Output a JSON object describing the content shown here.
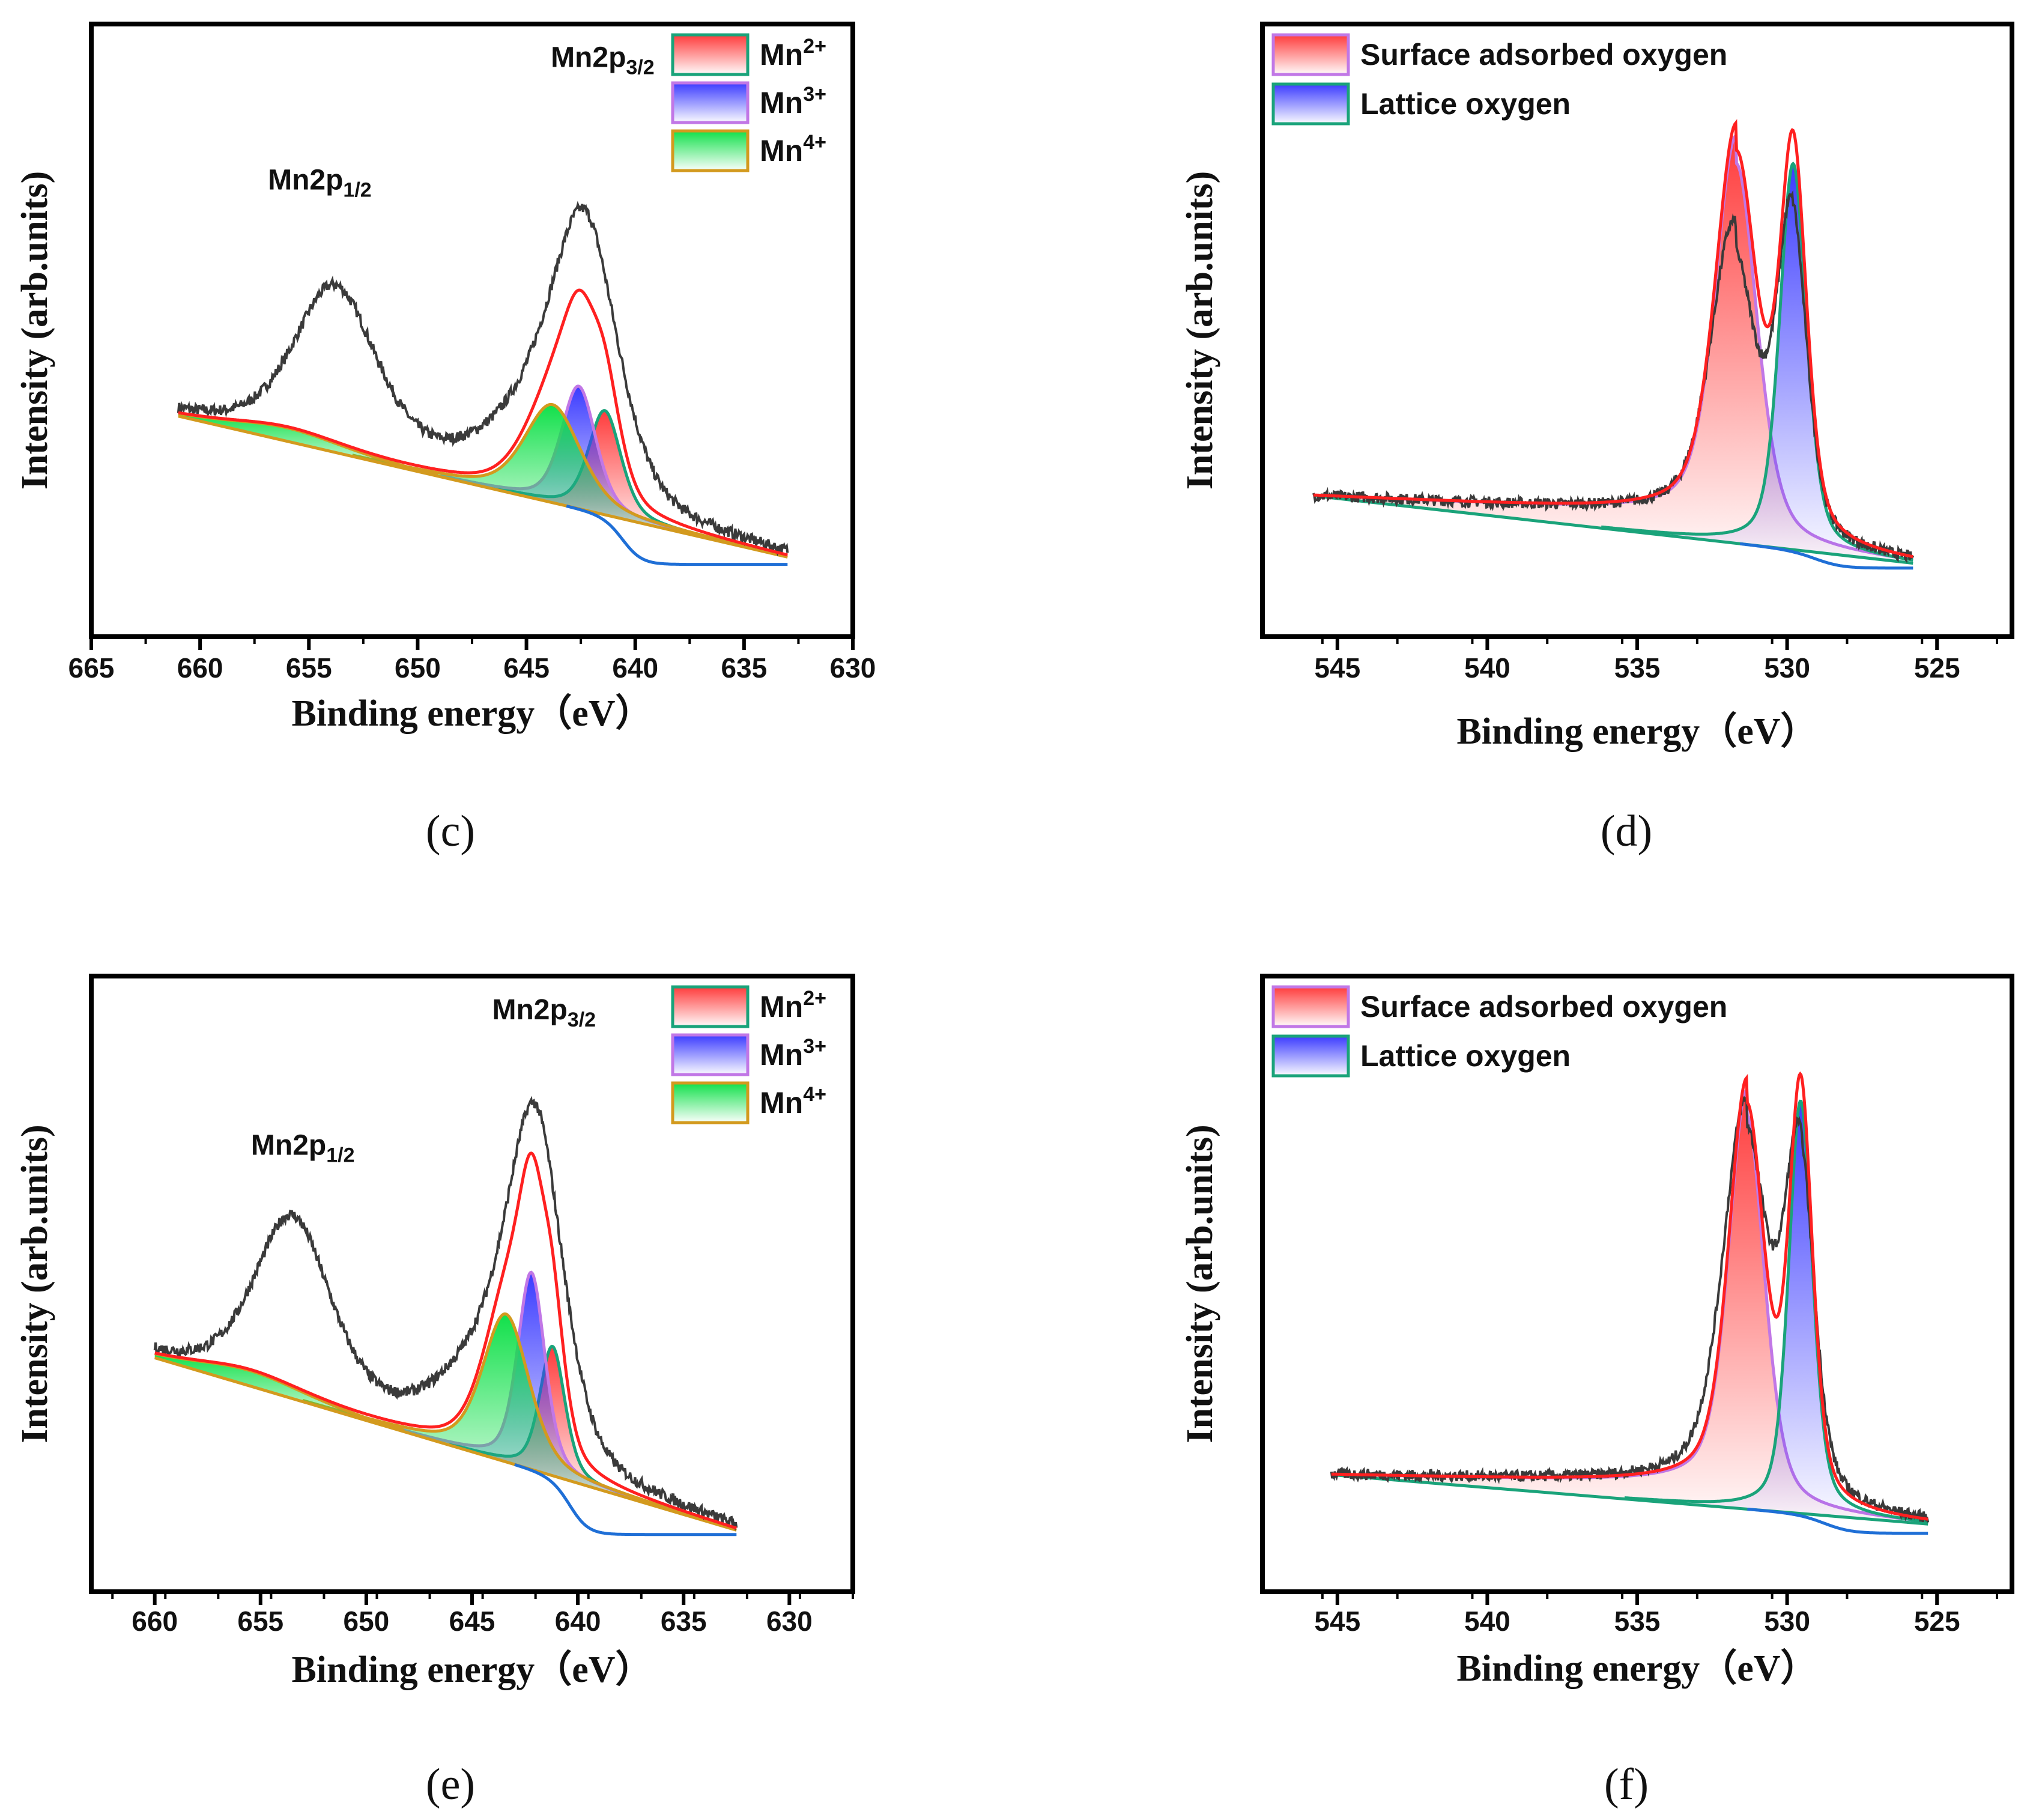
{
  "figure": {
    "panels": [
      "c",
      "d",
      "e",
      "f"
    ]
  },
  "chart_data": [
    {
      "id": "c",
      "type": "line",
      "panel_label": "(c)",
      "title": "",
      "xlabel": "Binding energy（eV）",
      "ylabel": "Intensity (arb.units)",
      "xlim": [
        665,
        630
      ],
      "ylim": [
        0,
        1
      ],
      "x_ticks": [
        665,
        660,
        655,
        650,
        645,
        640,
        635,
        630
      ],
      "y_ticks_shown": false,
      "peak_labels": [
        {
          "text": "Mn2p",
          "sub": "1/2",
          "x": 654.5,
          "y": 0.73
        },
        {
          "text": "Mn2p",
          "sub": "3/2",
          "x": 641.5,
          "y": 0.93
        }
      ],
      "legend": {
        "position": "top-right",
        "entries": [
          {
            "label": "Mn",
            "sup": "2+",
            "fill": "#ff3b3b",
            "edge": "#1aa37a"
          },
          {
            "label": "Mn",
            "sup": "3+",
            "fill": "#3b3bff",
            "edge": "#c177e6"
          },
          {
            "label": "Mn",
            "sup": "4+",
            "fill": "#11e04a",
            "edge": "#d39a1e"
          }
        ]
      },
      "data_range": [
        661,
        633
      ],
      "raw_peaks": [
        {
          "center": 653.8,
          "height": 0.265,
          "width": 1.9
        },
        {
          "center": 642.3,
          "height": 0.42,
          "width": 1.5
        },
        {
          "center": 644.6,
          "height": 0.11,
          "width": 2.3
        }
      ],
      "baseline": {
        "left": 0.36,
        "right": 0.13,
        "x0": 661,
        "x1": 633,
        "lower_end": 0.118
      },
      "components": [
        {
          "name": "Mn2+",
          "center": 641.4,
          "height": 0.17,
          "width": 0.75,
          "fill": "#ff3b3b",
          "edge": "#1aa37a"
        },
        {
          "name": "Mn3+",
          "center": 642.6,
          "height": 0.2,
          "width": 0.8,
          "fill": "#3b3bff",
          "edge": "#c177e6"
        },
        {
          "name": "Mn4+",
          "center": 643.8,
          "height": 0.16,
          "width": 1.3,
          "fill": "#11e04a",
          "edge": "#d39a1e"
        },
        {
          "name": "Mn4+ sat",
          "center": 656.0,
          "height": 0.022,
          "width": 2.6,
          "fill": "#11e04a",
          "edge": "#d39a1e"
        }
      ],
      "colors": {
        "raw": "#3a3a3a",
        "envelope": "#ff2020",
        "low_baseline": "#1f6fd6"
      }
    },
    {
      "id": "d",
      "type": "line",
      "panel_label": "(d)",
      "title": "",
      "xlabel": "Binding energy（eV）",
      "ylabel": "Intensity (arb.units)",
      "xlim": [
        547.5,
        522.5
      ],
      "ylim": [
        0,
        1
      ],
      "x_ticks": [
        545,
        540,
        535,
        530,
        525
      ],
      "y_ticks_shown": false,
      "legend": {
        "position": "top-left",
        "entries": [
          {
            "label": "Surface adsorbed oxygen",
            "fill": "#ff3b3b",
            "edge": "#c177e6"
          },
          {
            "label": "Lattice oxygen",
            "fill": "#3b3bff",
            "edge": "#1aa37a"
          }
        ]
      },
      "data_range": [
        545.8,
        525.8
      ],
      "raw_peaks": [
        {
          "center": 531.8,
          "height": 0.46,
          "width": 0.75
        },
        {
          "center": 529.85,
          "height": 0.53,
          "width": 0.5
        }
      ],
      "baseline": {
        "left": 0.23,
        "right": 0.12,
        "x0": 545.8,
        "x1": 525.8,
        "lower_end": 0.112
      },
      "components": [
        {
          "name": "Surface adsorbed oxygen",
          "center": 531.7,
          "height": 0.62,
          "width": 0.7,
          "fill": "#ff3b3b",
          "edge": "#c177e6",
          "tail": 0.045
        },
        {
          "name": "Lattice oxygen",
          "center": 529.8,
          "height": 0.63,
          "width": 0.45,
          "fill": "#3b3bff",
          "edge": "#1aa37a"
        }
      ],
      "colors": {
        "raw": "#3a3a3a",
        "envelope": "#ff2020",
        "low_baseline": "#1f6fd6"
      }
    },
    {
      "id": "e",
      "type": "line",
      "panel_label": "(e)",
      "title": "",
      "xlabel": "Binding energy（eV）",
      "ylabel": "Intensity (arb.units)",
      "xlim": [
        663,
        627
      ],
      "ylim": [
        0,
        1
      ],
      "x_ticks": [
        660,
        655,
        650,
        645,
        640,
        635,
        630
      ],
      "y_ticks_shown": false,
      "peak_labels": [
        {
          "text": "Mn2p",
          "sub": "1/2",
          "x": 653.0,
          "y": 0.71
        },
        {
          "text": "Mn2p",
          "sub": "3/2",
          "x": 641.6,
          "y": 0.93
        }
      ],
      "legend": {
        "position": "top-right",
        "entries": [
          {
            "label": "Mn",
            "sup": "2+",
            "fill": "#ff3b3b",
            "edge": "#1aa37a"
          },
          {
            "label": "Mn",
            "sup": "3+",
            "fill": "#3b3bff",
            "edge": "#c177e6"
          },
          {
            "label": "Mn",
            "sup": "4+",
            "fill": "#11e04a",
            "edge": "#d39a1e"
          }
        ]
      },
      "data_range": [
        660,
        632.5
      ],
      "raw_peaks": [
        {
          "center": 653.5,
          "height": 0.29,
          "width": 1.8
        },
        {
          "center": 642.0,
          "height": 0.52,
          "width": 1.3
        },
        {
          "center": 644.3,
          "height": 0.13,
          "width": 2.1
        }
      ],
      "baseline": {
        "left": 0.38,
        "right": 0.1,
        "x0": 660,
        "x1": 632.5,
        "lower_end": 0.093
      },
      "components": [
        {
          "name": "Mn2+",
          "center": 641.2,
          "height": 0.21,
          "width": 0.6,
          "fill": "#ff3b3b",
          "edge": "#1aa37a"
        },
        {
          "name": "Mn3+",
          "center": 642.2,
          "height": 0.32,
          "width": 0.65,
          "fill": "#3b3bff",
          "edge": "#c177e6"
        },
        {
          "name": "Mn4+",
          "center": 643.4,
          "height": 0.24,
          "width": 1.1,
          "fill": "#11e04a",
          "edge": "#d39a1e"
        },
        {
          "name": "Mn4+ sat",
          "center": 655.5,
          "height": 0.025,
          "width": 2.6,
          "fill": "#11e04a",
          "edge": "#d39a1e"
        }
      ],
      "colors": {
        "raw": "#3a3a3a",
        "envelope": "#ff2020",
        "low_baseline": "#1f6fd6"
      }
    },
    {
      "id": "f",
      "type": "line",
      "panel_label": "(f)",
      "title": "",
      "xlabel": "Binding energy（eV）",
      "ylabel": "Intensity (arb.units)",
      "xlim": [
        547.5,
        522.5
      ],
      "ylim": [
        0,
        1
      ],
      "x_ticks": [
        545,
        540,
        535,
        530,
        525
      ],
      "y_ticks_shown": false,
      "legend": {
        "position": "top-left",
        "entries": [
          {
            "label": "Surface adsorbed oxygen",
            "fill": "#ff3b3b",
            "edge": "#c177e6"
          },
          {
            "label": "Lattice oxygen",
            "fill": "#3b3bff",
            "edge": "#1aa37a"
          }
        ]
      },
      "data_range": [
        545.2,
        525.3
      ],
      "raw_peaks": [
        {
          "center": 531.4,
          "height": 0.6,
          "width": 0.75
        },
        {
          "center": 529.6,
          "height": 0.56,
          "width": 0.5
        }
      ],
      "baseline": {
        "left": 0.19,
        "right": 0.11,
        "x0": 545.2,
        "x1": 525.3,
        "lower_end": 0.095
      },
      "components": [
        {
          "name": "Surface adsorbed oxygen",
          "center": 531.35,
          "height": 0.64,
          "width": 0.6,
          "fill": "#ff3b3b",
          "edge": "#c177e6",
          "tail": 0.04
        },
        {
          "name": "Lattice oxygen",
          "center": 529.55,
          "height": 0.67,
          "width": 0.4,
          "fill": "#3b3bff",
          "edge": "#1aa37a"
        }
      ],
      "colors": {
        "raw": "#3a3a3a",
        "envelope": "#ff2020",
        "low_baseline": "#1f6fd6"
      }
    }
  ]
}
